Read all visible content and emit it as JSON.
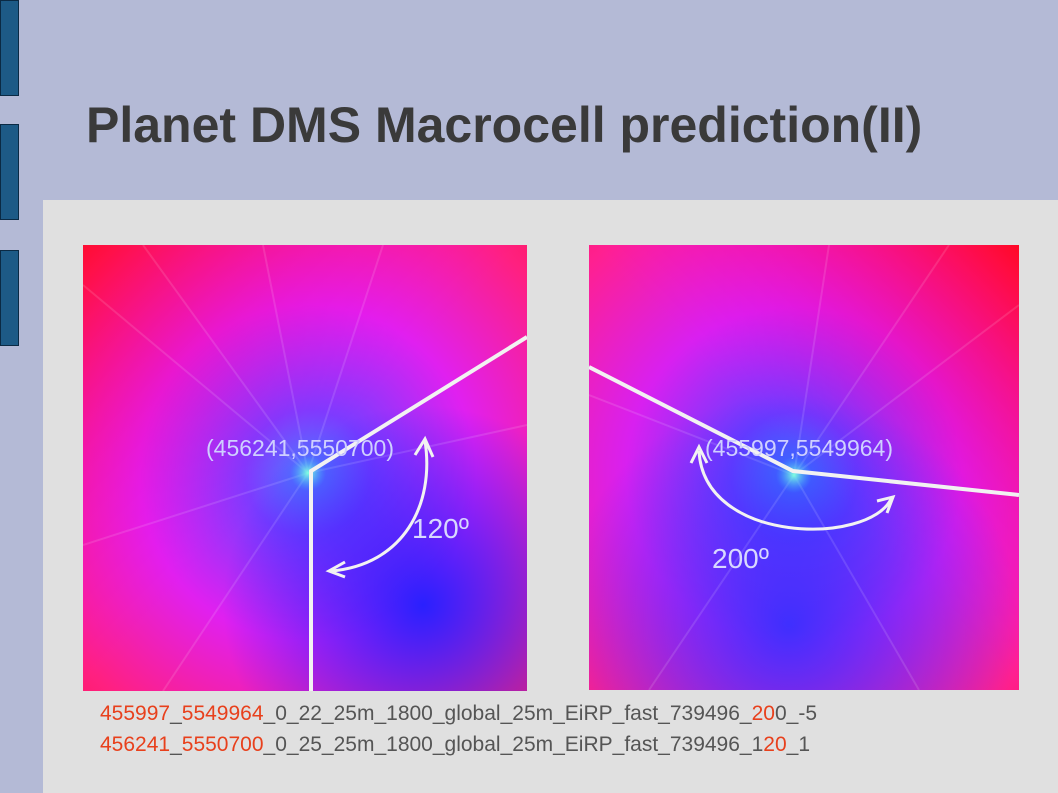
{
  "slide": {
    "title": "Planet DMS Macrocell prediction(II)"
  },
  "left_map": {
    "coordinate_label": "(456241,5550700)",
    "angle_label": "120º"
  },
  "right_map": {
    "coordinate_label": "(455997,5549964)",
    "angle_label": "200º"
  },
  "captions": {
    "line1": {
      "part1": "455997",
      "part2": "_",
      "part3": "5549964",
      "part4": "_0_22_25m_1800_global_25m_EiRP_fast_739496_",
      "part5": "20",
      "part6": "0_-5",
      "prefix2": "2"
    },
    "line2": {
      "part1": "456241",
      "part2": "_",
      "part3": "5550700",
      "part4": "_0_25_25m_1800_global_25m_EiRP_fast_739496_1",
      "part5": "20",
      "part6": "_1"
    }
  },
  "colors": {
    "background": "#b4bad6",
    "content_panel": "#e0e0e0",
    "tab": "#1d5a86",
    "highlight_text": "#e8401c"
  }
}
